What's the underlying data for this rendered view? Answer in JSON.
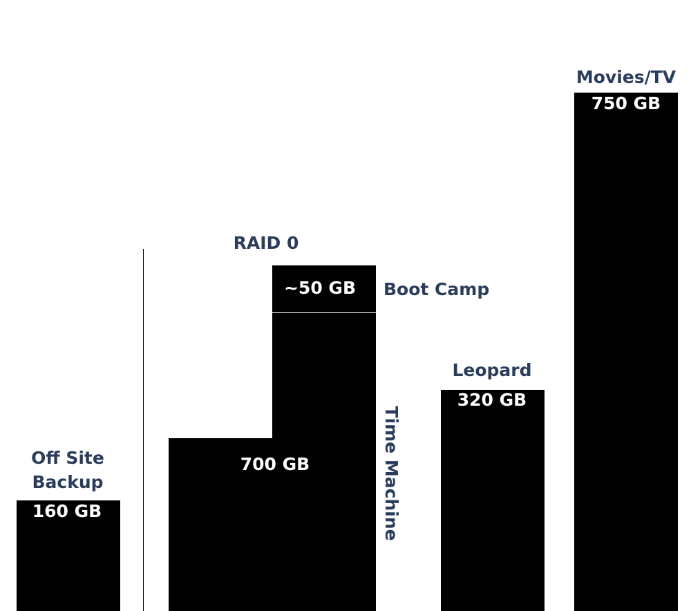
{
  "drives": [
    {
      "name_lines": [
        "Off Site",
        "Backup"
      ],
      "size": "160 GB"
    },
    {
      "name": "RAID 0",
      "partitions": [
        {
          "name": "Boot Camp",
          "size": "~50 GB"
        },
        {
          "name": "Time Machine",
          "size": "700 GB"
        }
      ]
    },
    {
      "name": "Leopard",
      "size": "320 GB"
    },
    {
      "name": "Movies/TV",
      "size": "750 GB"
    }
  ]
}
